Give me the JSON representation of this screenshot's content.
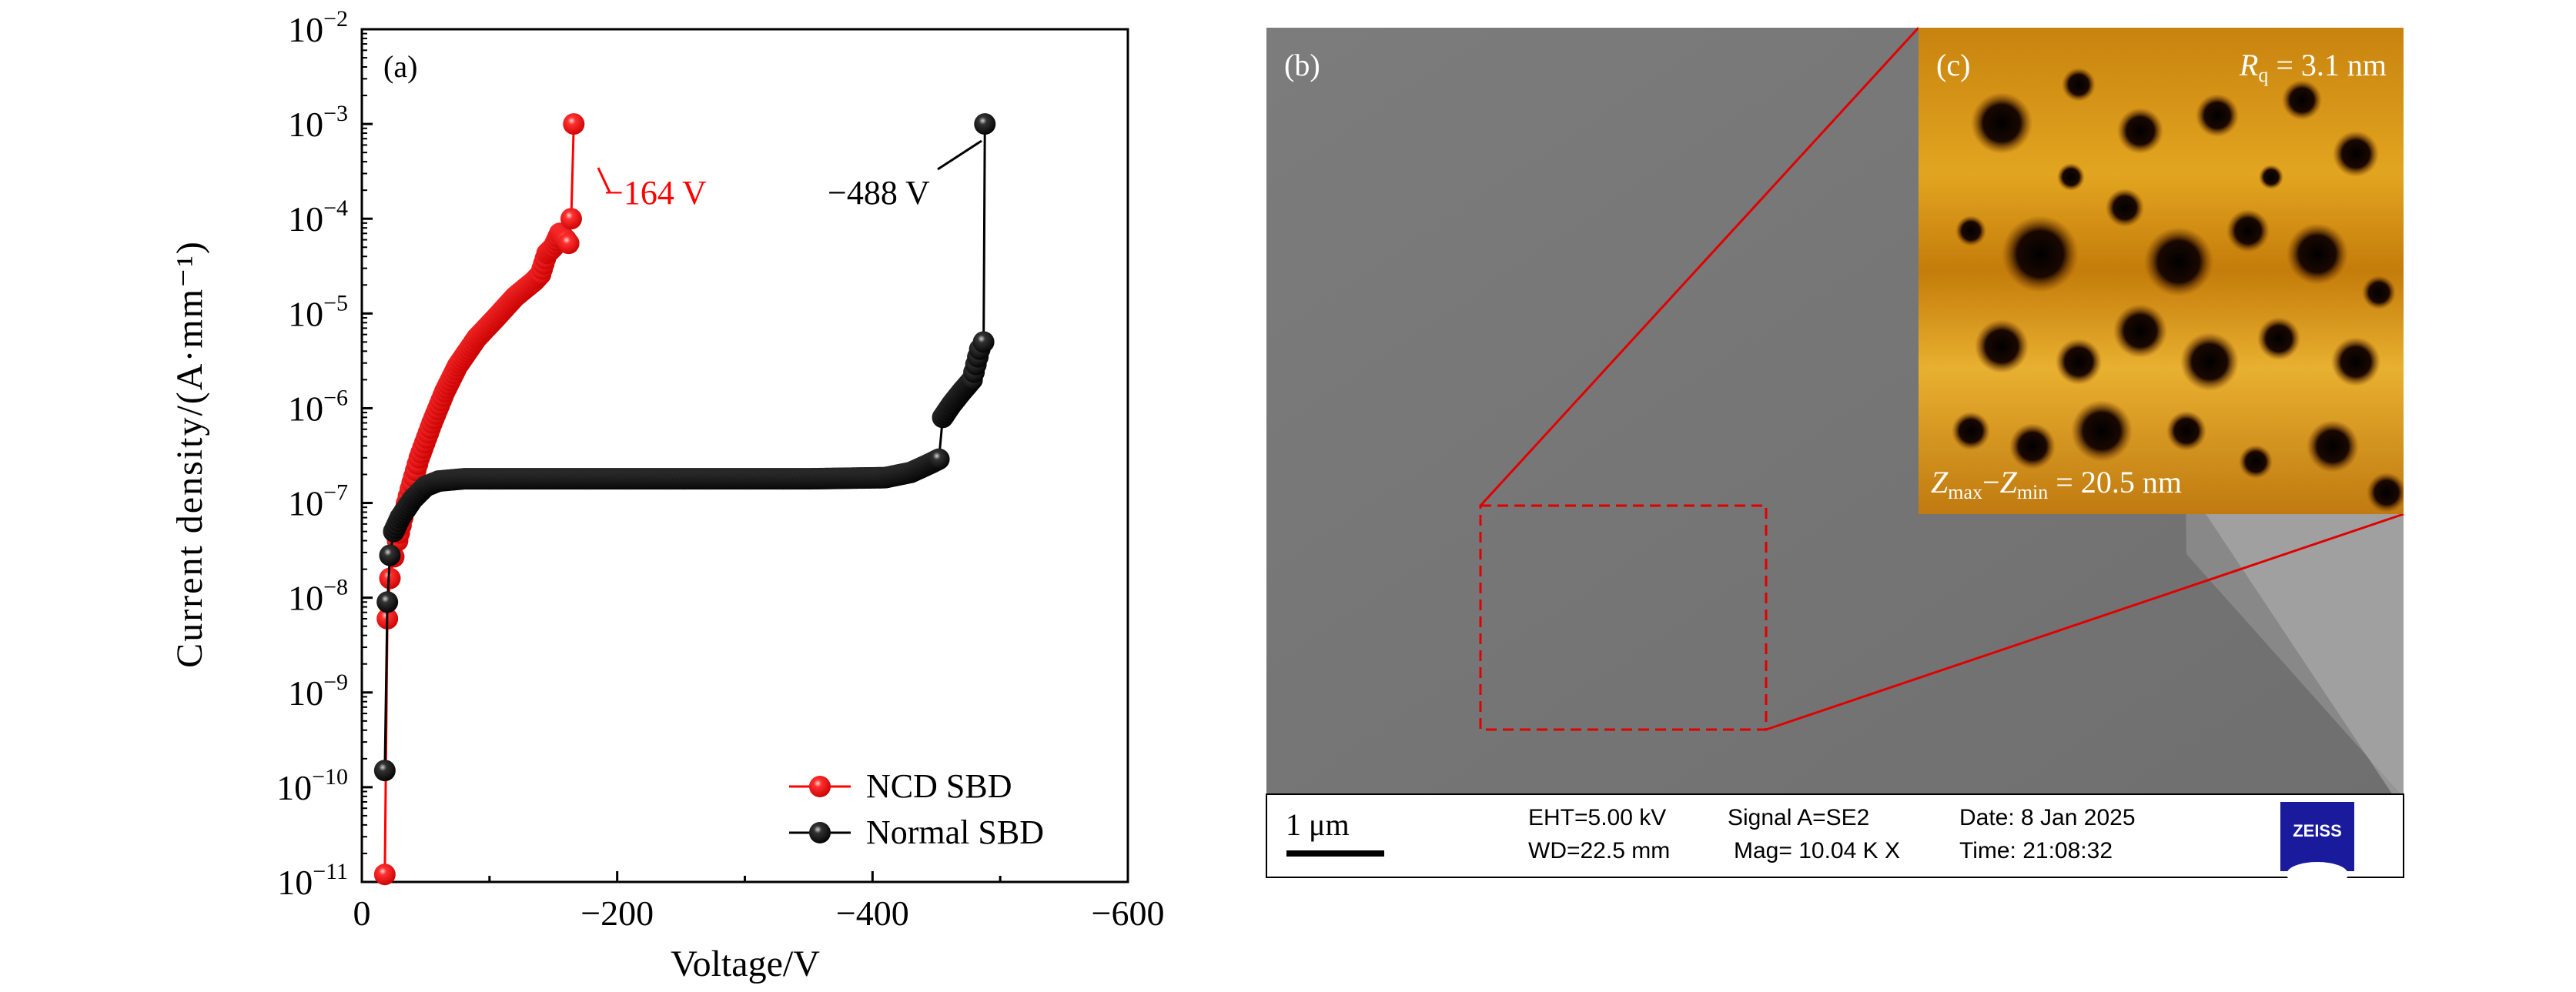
{
  "chart_data": {
    "type": "scatter",
    "panel_label": "(a)",
    "xlabel": "Voltage/V",
    "ylabel": "Current density/(A·mm⁻¹)",
    "xlim": [
      0,
      -600
    ],
    "ylim": [
      1e-11,
      0.01
    ],
    "yscale": "log",
    "x_ticks": [
      0,
      -200,
      -400,
      -600
    ],
    "x_tick_labels": [
      "0",
      "−200",
      "−400",
      "−600"
    ],
    "y_tick_base": "10",
    "y_tick_exponents": [
      "−2",
      "−3",
      "−4",
      "−5",
      "−6",
      "−7",
      "−8",
      "−9",
      "−10",
      "−11"
    ],
    "legend_position": "bottom-right",
    "series": [
      {
        "name": "NCD SBD",
        "color": "#ff0000",
        "x": [
          -18,
          -20,
          -22,
          -25,
          -28,
          -32,
          -38,
          -45,
          -55,
          -65,
          -75,
          -90,
          -105,
          -120,
          -135,
          -140,
          -145,
          -150,
          -155,
          -160,
          -162,
          -164,
          -166
        ],
        "y": [
          1.2e-11,
          6e-09,
          1.6e-08,
          2.7e-08,
          4e-08,
          7e-08,
          1.4e-07,
          3e-07,
          7e-07,
          1.5e-06,
          2.8e-06,
          5.5e-06,
          9e-06,
          1.5e-05,
          2.2e-05,
          2.6e-05,
          4.3e-05,
          5e-05,
          7e-05,
          6e-05,
          5.5e-05,
          0.0001,
          0.001
        ]
      },
      {
        "name": "Normal SBD",
        "color": "#000000",
        "x": [
          -18,
          -20,
          -22,
          -25,
          -30,
          -40,
          -50,
          -60,
          -80,
          -150,
          -250,
          -350,
          -410,
          -430,
          -445,
          -452,
          -455,
          -462,
          -470,
          -478,
          -484,
          -487,
          -488
        ],
        "y": [
          1.5e-10,
          9e-09,
          2.8e-08,
          5e-08,
          7e-08,
          1.1e-07,
          1.5e-07,
          1.7e-07,
          1.8e-07,
          1.8e-07,
          1.8e-07,
          1.8e-07,
          1.85e-07,
          2.1e-07,
          2.6e-07,
          2.9e-07,
          8e-07,
          1.1e-06,
          1.5e-06,
          2e-06,
          4.2e-06,
          5e-06,
          0.001
        ]
      }
    ],
    "annotations": [
      {
        "text": "−164 V",
        "color": "#ff0000",
        "at_x": -164,
        "at_y": 0.001
      },
      {
        "text": "−488 V",
        "color": "#000000",
        "at_x": -488,
        "at_y": 0.001
      }
    ]
  },
  "sem": {
    "panel_label": "(b)",
    "scale_bar": "1 μm",
    "eht": "EHT=5.00 kV",
    "wd": "WD=22.5 mm",
    "signal": "Signal A=SE2",
    "mag": "Mag= 10.04 K X",
    "date": "Date: 8 Jan 2025",
    "time": "Time: 21:08:32",
    "logo": "ZEISS",
    "logo_color": "#1a1a9c"
  },
  "afm": {
    "panel_label": "(c)",
    "rq_symbol": "R",
    "rq_sub": "q",
    "rq_value": " = 3.1 nm",
    "z_symbol": "Z",
    "zmax_sub": "max",
    "zmin_sub": "min",
    "z_value": " = 20.5 nm"
  }
}
